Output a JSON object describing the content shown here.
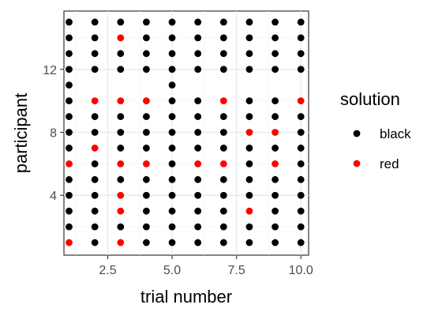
{
  "chart_data": {
    "type": "scatter",
    "xlabel": "trial number",
    "ylabel": "participant",
    "xlim": [
      0.8,
      10.3
    ],
    "ylim": [
      0.2,
      15.7
    ],
    "x_ticks": [
      2.5,
      5.0,
      7.5,
      10.0
    ],
    "x_tick_labels": [
      "2.5",
      "5.0",
      "7.5",
      "10.0"
    ],
    "y_ticks": [
      4,
      8,
      12
    ],
    "y_tick_labels": [
      "4",
      "8",
      "12"
    ],
    "grid": true,
    "legend": {
      "title": "solution",
      "position": "right",
      "entries": [
        {
          "label": "black",
          "color": "#000000"
        },
        {
          "label": "red",
          "color": "#ff0000"
        }
      ]
    },
    "trials": [
      1,
      2,
      3,
      4,
      5,
      6,
      7,
      8,
      9,
      10
    ],
    "participants_order": [
      15,
      14,
      13,
      12,
      11,
      10,
      9,
      8,
      7,
      6,
      5,
      4,
      3,
      2,
      1
    ],
    "grid_rows": [
      "BBBBBBBBBB",
      "BBRBBBBBBB",
      "BBBBBBBBBB",
      "BBBBBBBBBB",
      "B---B-----",
      "BRRRBBRBBR",
      "BBBBBBBBBB",
      "BBBBBBBRRB",
      "BRBBBBBBBB",
      "RBRRBRRBRB",
      "BBBBBBBBBB",
      "BBRBBBBBBB",
      "BBRBBBBRBB",
      "BBBBBBBBBB",
      "RBRBBBBBBB"
    ],
    "colors": {
      "B": "#000000",
      "R": "#ff0000"
    }
  }
}
